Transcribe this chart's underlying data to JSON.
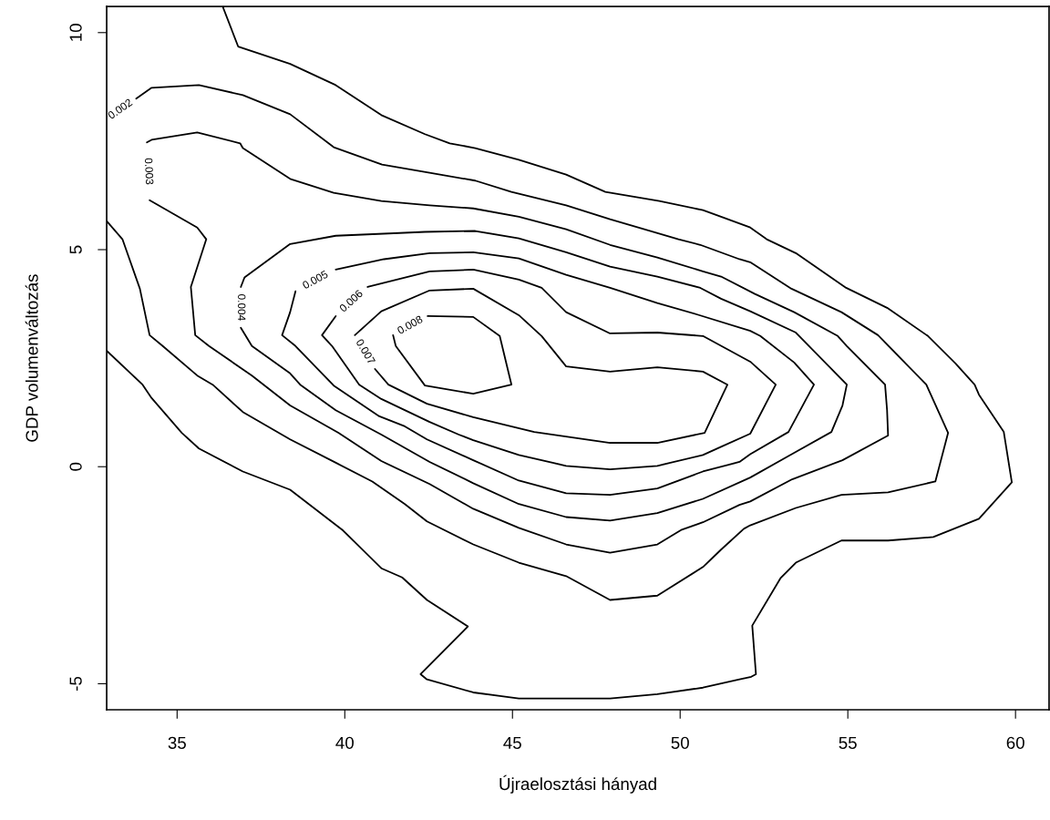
{
  "chart_data": {
    "type": "line",
    "xlabel": "Újraelosztási hányad",
    "ylabel": "GDP volumenváltozás",
    "xlim": [
      32.9,
      61.0
    ],
    "ylim": [
      -5.6,
      10.6
    ],
    "xticks": [
      35,
      40,
      45,
      50,
      55,
      60
    ],
    "yticks": [
      -5,
      0,
      5,
      10
    ],
    "grid": false,
    "legend": false,
    "series": [
      {
        "color": "#000000",
        "x": [
          32.9,
          33.97,
          34.24,
          35.14,
          35.65,
          36.96,
          38.37,
          39.95,
          41.09,
          41.71,
          42.45,
          43.67,
          42.26,
          42.45,
          43.83,
          45.19,
          47.91,
          49.32,
          50.68,
          51.77,
          52.12,
          52.26,
          52.15,
          52.99,
          53.45,
          54.81,
          56.2,
          57.55,
          58.91,
          59.89,
          59.65,
          58.91,
          58.78,
          58.21,
          57.39,
          56.17,
          54.95,
          53.45,
          52.58,
          52.09,
          51.22,
          50.68,
          49.38,
          47.77,
          46.6,
          45.19,
          43.89,
          43.13,
          42.39,
          41.09,
          39.73,
          38.37,
          36.82,
          36.36
        ],
        "values": [
          2.67,
          1.89,
          1.58,
          0.78,
          0.42,
          -0.11,
          -0.53,
          -1.47,
          -2.34,
          -2.55,
          -3.07,
          -3.68,
          -4.78,
          -4.9,
          -5.2,
          -5.34,
          -5.34,
          -5.24,
          -5.09,
          -4.9,
          -4.84,
          -4.78,
          -3.66,
          -2.57,
          -2.21,
          -1.7,
          -1.7,
          -1.62,
          -1.2,
          -0.36,
          0.8,
          1.66,
          1.89,
          2.38,
          3.01,
          3.66,
          4.12,
          4.92,
          5.24,
          5.51,
          5.76,
          5.91,
          6.12,
          6.33,
          6.73,
          7.07,
          7.34,
          7.45,
          7.66,
          8.1,
          8.79,
          9.28,
          9.68,
          10.6
        ]
      },
      {
        "name": "0.002",
        "color": "#000000",
        "x": [
          33.78,
          34.24,
          35.65,
          36.96,
          38.37,
          39.67,
          41.11,
          42.53,
          43.89,
          44.97,
          46.6,
          47.91,
          49.95,
          50.6,
          51.77,
          52.09,
          53.32,
          54.81,
          55.9,
          57.34,
          57.99,
          57.61,
          56.2,
          54.81,
          53.45,
          52.09,
          51.9,
          51.22,
          50.68,
          49.32,
          47.91,
          46.6,
          45.19,
          43.83,
          42.45,
          41.79,
          40.82,
          39.76,
          38.37,
          36.96,
          36.06,
          35.6,
          34.57,
          34.18,
          33.89,
          33.37,
          32.9
        ],
        "values": [
          8.48,
          8.73,
          8.79,
          8.56,
          8.12,
          7.36,
          6.96,
          6.77,
          6.59,
          6.33,
          6.02,
          5.7,
          5.24,
          5.11,
          4.78,
          4.71,
          4.1,
          3.56,
          3.03,
          1.89,
          0.78,
          -0.34,
          -0.59,
          -0.65,
          -0.95,
          -1.35,
          -1.43,
          -1.91,
          -2.31,
          -2.97,
          -3.07,
          -2.52,
          -2.21,
          -1.79,
          -1.26,
          -0.86,
          -0.34,
          0.08,
          0.63,
          1.26,
          1.89,
          2.1,
          2.78,
          3.03,
          4.1,
          5.24,
          5.66
        ]
      },
      {
        "name": "0.003",
        "color": "#000000",
        "x": [
          34.18,
          35.6,
          35.87,
          35.41,
          35.54,
          35.95,
          37.23,
          38.37,
          39.81,
          41.09,
          42.53,
          43.83,
          45.19,
          46.6,
          47.91,
          49.32,
          50.05,
          50.68,
          51.77,
          52.09,
          53.34,
          54.84,
          56.2,
          56.17,
          56.11,
          54.97,
          54.7,
          53.4,
          52.23,
          51.22,
          50.68,
          49.32,
          47.91,
          46.6,
          45.19,
          43.83,
          42.53,
          41.09,
          39.67,
          38.37,
          36.96,
          36.88,
          35.6,
          34.24,
          34.1
        ],
        "values": [
          6.14,
          5.51,
          5.24,
          4.14,
          3.03,
          2.78,
          2.1,
          1.41,
          0.78,
          0.13,
          -0.4,
          -0.97,
          -1.41,
          -1.79,
          -1.98,
          -1.79,
          -1.45,
          -1.28,
          -0.88,
          -0.8,
          -0.29,
          0.15,
          0.72,
          1.3,
          1.89,
          2.78,
          3.01,
          3.56,
          3.98,
          4.38,
          4.5,
          4.82,
          5.11,
          5.47,
          5.76,
          5.95,
          6.02,
          6.12,
          6.31,
          6.63,
          7.34,
          7.45,
          7.7,
          7.53,
          7.47
        ]
      },
      {
        "name": "0.004",
        "color": "#000000",
        "x": [
          36.9,
          37.23,
          38.37,
          38.67,
          39.73,
          41.09,
          42.53,
          43.83,
          45.19,
          46.6,
          47.91,
          49.32,
          50.68,
          52.09,
          53.4,
          54.51,
          54.84,
          54.97,
          53.45,
          52.09,
          51.22,
          50.6,
          49.32,
          47.91,
          46.6,
          45.19,
          43.89,
          42.39,
          39.73,
          38.37,
          37.01,
          36.9
        ],
        "values": [
          3.2,
          2.78,
          2.15,
          1.89,
          1.3,
          0.74,
          0.11,
          -0.38,
          -0.86,
          -1.16,
          -1.24,
          -1.07,
          -0.74,
          -0.25,
          0.32,
          0.8,
          1.41,
          1.89,
          3.09,
          3.58,
          3.87,
          4.12,
          4.38,
          4.61,
          4.94,
          5.26,
          5.43,
          5.41,
          5.32,
          5.13,
          4.36,
          4.14
        ]
      },
      {
        "name": "0.005",
        "color": "#000000",
        "x": [
          39.73,
          41.17,
          42.53,
          43.83,
          45.19,
          46.6,
          47.91,
          49.32,
          50.49,
          52.09,
          52.39,
          53.4,
          53.99,
          53.23,
          52.09,
          51.77,
          50.68,
          49.32,
          47.91,
          46.6,
          45.19,
          43.83,
          42.45,
          41.79,
          41.03,
          39.67,
          38.53,
          38.13,
          38.37,
          38.53
        ],
        "values": [
          4.54,
          4.78,
          4.92,
          4.94,
          4.8,
          4.42,
          4.12,
          3.77,
          3.51,
          3.13,
          3.01,
          2.4,
          1.89,
          0.8,
          0.29,
          0.11,
          -0.11,
          -0.5,
          -0.65,
          -0.61,
          -0.32,
          0.15,
          0.63,
          0.93,
          1.16,
          1.87,
          2.78,
          3.03,
          3.56,
          4.04
        ]
      },
      {
        "name": "0.006",
        "color": "#000000",
        "x": [
          40.68,
          42.53,
          43.83,
          45.19,
          45.87,
          46.6,
          47.91,
          49.32,
          50.68,
          52.09,
          52.85,
          52.09,
          51.22,
          50.68,
          49.32,
          47.91,
          46.6,
          45.19,
          43.83,
          43.4,
          42.53,
          41.09,
          40.43,
          39.62,
          39.32,
          39.73
        ],
        "values": [
          4.14,
          4.5,
          4.54,
          4.31,
          4.12,
          3.56,
          3.07,
          3.09,
          3.01,
          2.42,
          1.89,
          0.76,
          0.46,
          0.27,
          0.02,
          -0.06,
          0.02,
          0.27,
          0.61,
          0.74,
          1.03,
          1.56,
          1.89,
          2.78,
          3.03,
          3.47
        ]
      },
      {
        "name": "0.007",
        "color": "#000000",
        "x": [
          40.3,
          41.09,
          42.53,
          43.83,
          45.19,
          45.87,
          46.6,
          47.91,
          49.32,
          50.68,
          51.41,
          50.73,
          49.32,
          47.91,
          45.65,
          43.83,
          42.45,
          41.3,
          40.9
        ],
        "values": [
          3.03,
          3.58,
          4.06,
          4.1,
          3.49,
          3.01,
          2.31,
          2.19,
          2.29,
          2.19,
          1.89,
          0.78,
          0.55,
          0.55,
          0.8,
          1.14,
          1.45,
          1.89,
          2.25
        ]
      },
      {
        "name": "0.008",
        "color": "#000000",
        "x": [
          42.47,
          43.83,
          44.62,
          44.97,
          43.83,
          42.39,
          41.52,
          41.44
        ],
        "values": [
          3.47,
          3.45,
          3.01,
          1.89,
          1.68,
          1.87,
          2.78,
          3.03
        ]
      }
    ]
  }
}
